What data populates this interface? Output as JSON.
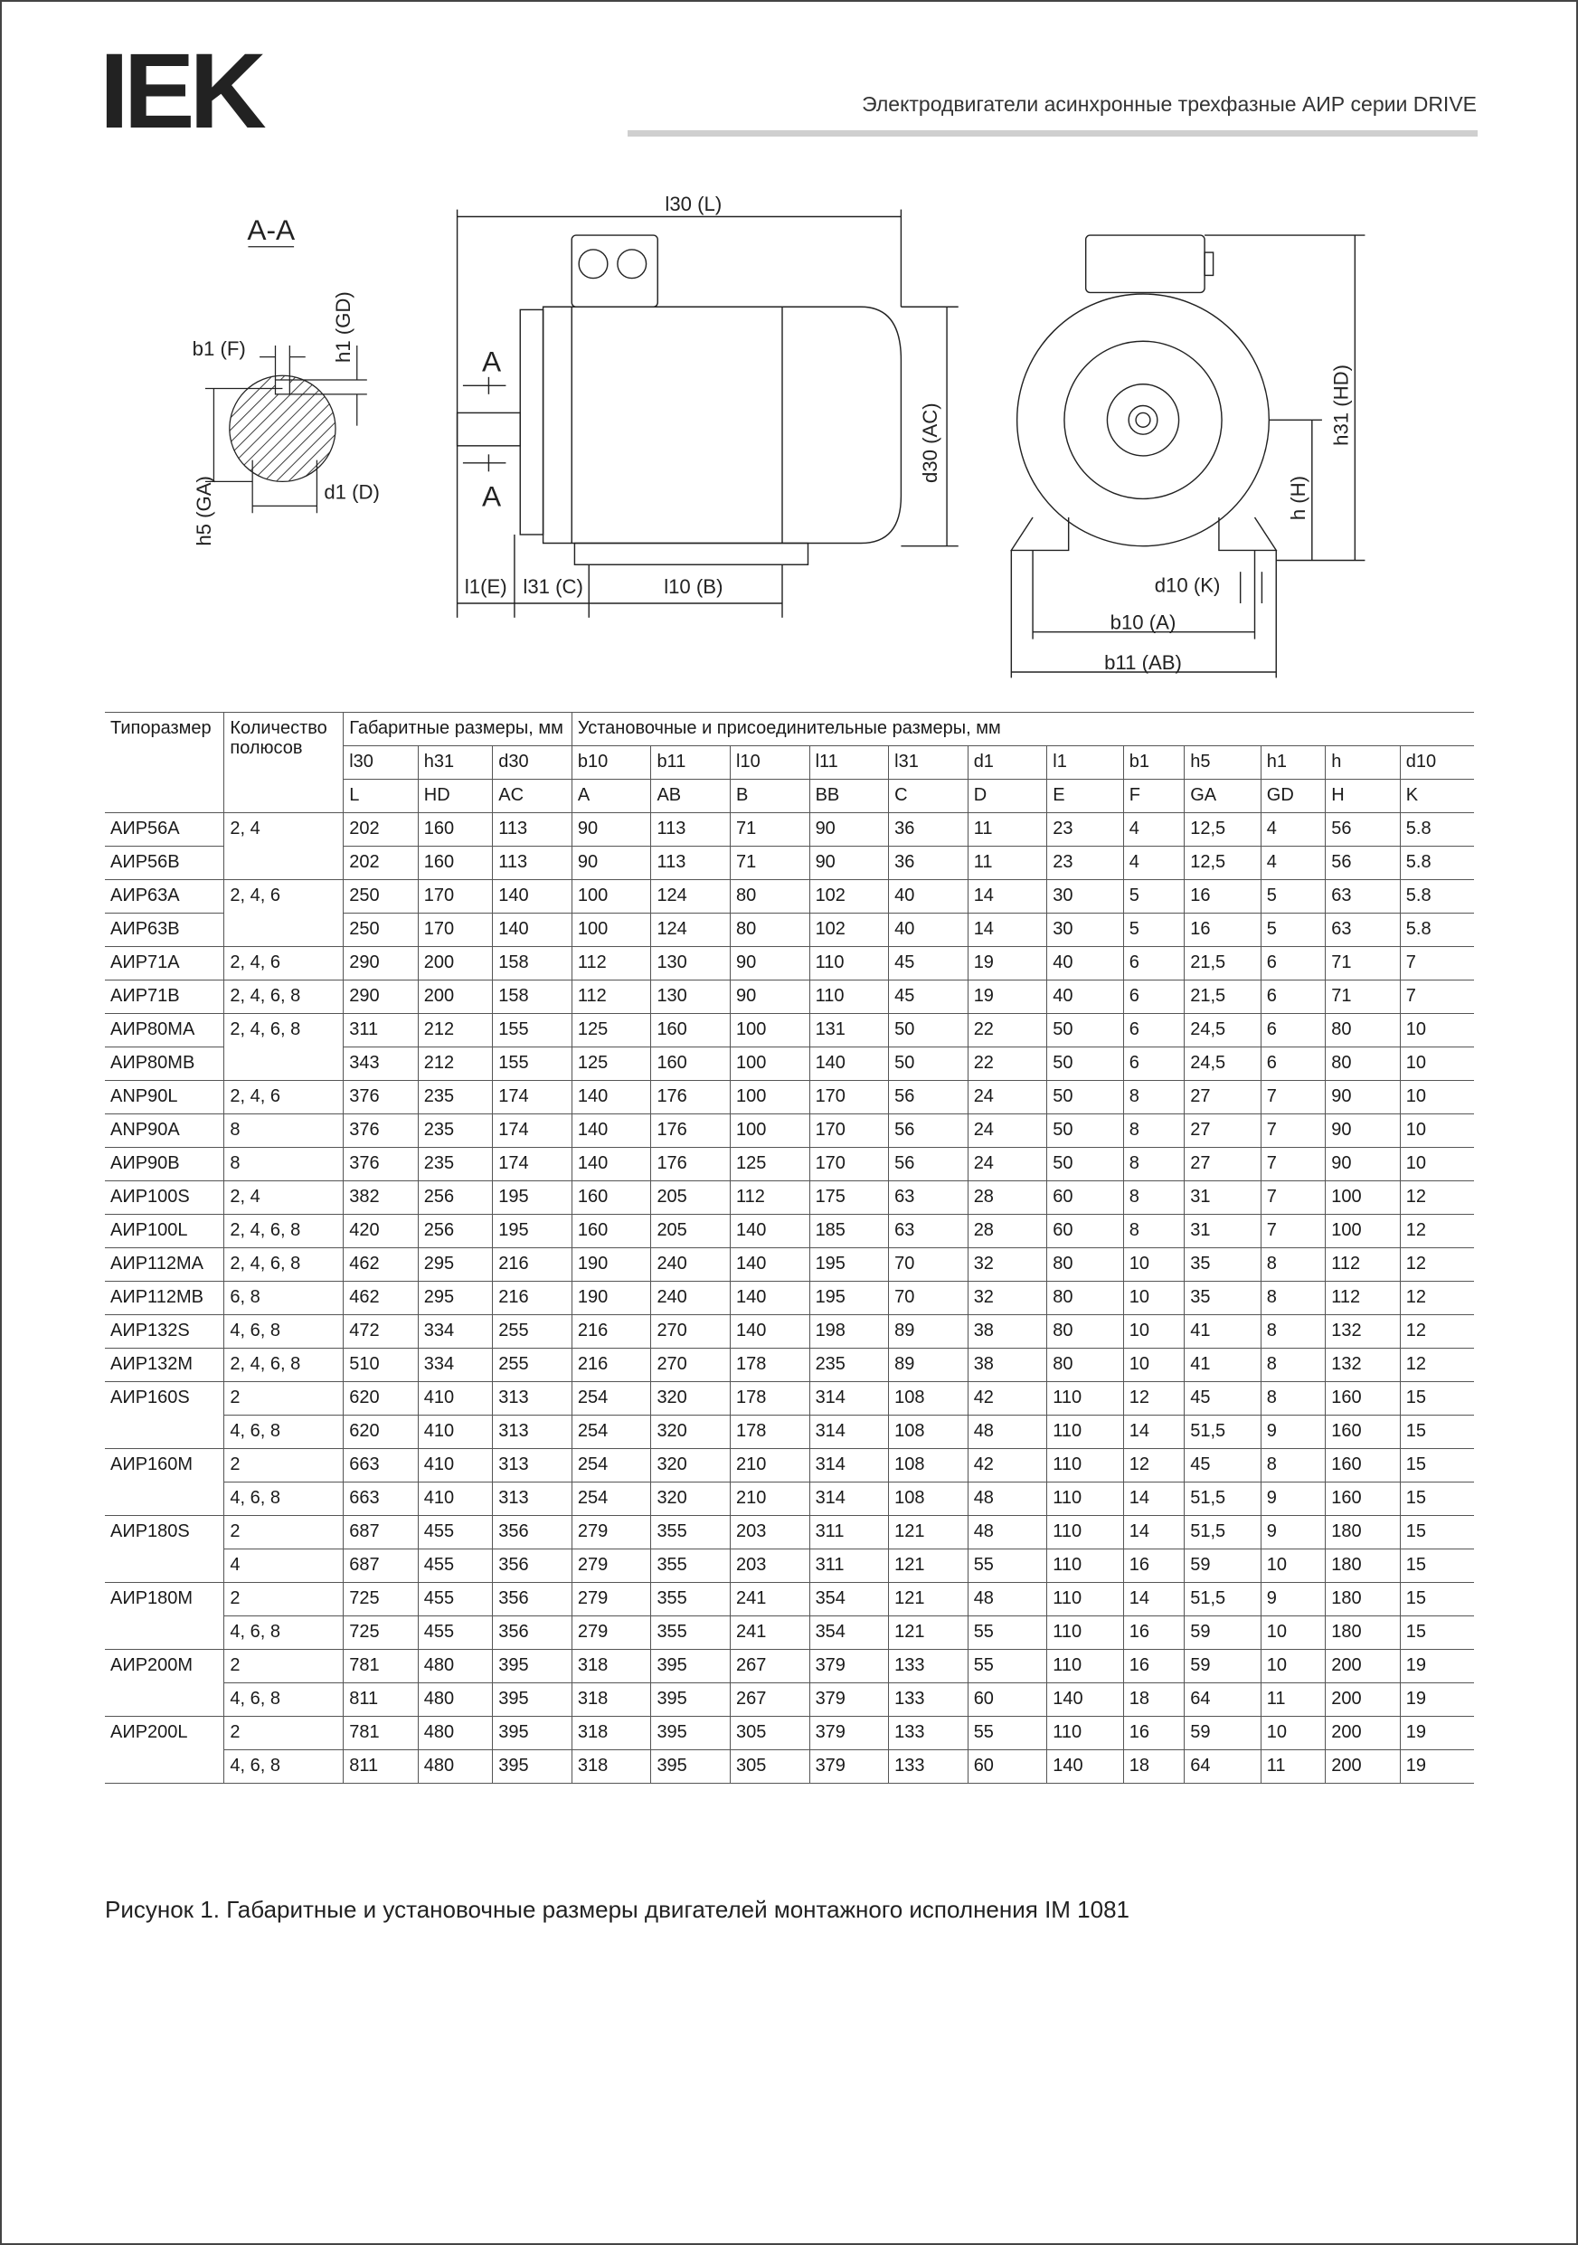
{
  "header": {
    "logo": "IEK",
    "title": "Электродвигатели асинхронные трехфазные АИР серии DRIVE"
  },
  "drawing": {
    "labels": {
      "section": "A-A",
      "b1": "b1 (F)",
      "h1": "h1 (GD)",
      "h5": "h5 (GA)",
      "d1": "d1 (D)",
      "l30": "l30 (L)",
      "cutTop": "A",
      "cutBottom": "A",
      "d30": "d30 (AC)",
      "l1": "l1(E)",
      "l31": "l31 (C)",
      "l10": "l10 (B)",
      "h31": "h31 (HD)",
      "h": "h (H)",
      "d10": "d10 (K)",
      "b10": "b10 (A)",
      "b11": "b11 (AB)"
    }
  },
  "table": {
    "header": {
      "size": "Типоразмер",
      "poles": "Количество полюсов",
      "overall": "Габаритные размеры, мм",
      "mounting": "Установочные и присоединительные размеры, мм",
      "symbols": [
        "l30",
        "h31",
        "d30",
        "b10",
        "b11",
        "l10",
        "l11",
        "l31",
        "d1",
        "l1",
        "b1",
        "h5",
        "h1",
        "h",
        "d10"
      ],
      "letters": [
        "L",
        "HD",
        "AC",
        "A",
        "AB",
        "B",
        "BB",
        "C",
        "D",
        "E",
        "F",
        "GA",
        "GD",
        "H",
        "K"
      ]
    },
    "rows": [
      {
        "size": "АИР56А",
        "poles": "2, 4",
        "values": [
          202,
          160,
          113,
          90,
          113,
          71,
          90,
          36,
          11,
          23,
          4,
          "12,5",
          4,
          56,
          5.8
        ]
      },
      {
        "size": "АИР56В",
        "values": [
          202,
          160,
          113,
          90,
          113,
          71,
          90,
          36,
          11,
          23,
          4,
          "12,5",
          4,
          56,
          5.8
        ]
      },
      {
        "size": "АИР63А",
        "poles": "2, 4, 6",
        "values": [
          250,
          170,
          140,
          100,
          124,
          80,
          102,
          40,
          14,
          30,
          5,
          16,
          5,
          63,
          5.8
        ]
      },
      {
        "size": "АИР63В",
        "values": [
          250,
          170,
          140,
          100,
          124,
          80,
          102,
          40,
          14,
          30,
          5,
          16,
          5,
          63,
          5.8
        ]
      },
      {
        "size": "АИР71А",
        "poles": "2, 4, 6",
        "values": [
          290,
          200,
          158,
          112,
          130,
          90,
          110,
          45,
          19,
          40,
          6,
          "21,5",
          6,
          71,
          7
        ]
      },
      {
        "size": "АИР71В",
        "poles": "2, 4, 6, 8",
        "values": [
          290,
          200,
          158,
          112,
          130,
          90,
          110,
          45,
          19,
          40,
          6,
          "21,5",
          6,
          71,
          7
        ]
      },
      {
        "size": "АИР80МА",
        "poles": "2, 4, 6, 8",
        "values": [
          311,
          212,
          155,
          125,
          160,
          100,
          131,
          50,
          22,
          50,
          6,
          "24,5",
          6,
          80,
          10
        ]
      },
      {
        "size": "АИР80МВ",
        "values": [
          343,
          212,
          155,
          125,
          160,
          100,
          140,
          50,
          22,
          50,
          6,
          "24,5",
          6,
          80,
          10
        ]
      },
      {
        "size": "ANP90L",
        "poles": "2, 4, 6",
        "values": [
          376,
          235,
          174,
          140,
          176,
          100,
          170,
          56,
          24,
          50,
          8,
          27,
          7,
          90,
          10
        ]
      },
      {
        "size": "ANP90A",
        "poles": "8",
        "values": [
          376,
          235,
          174,
          140,
          176,
          100,
          170,
          56,
          24,
          50,
          8,
          27,
          7,
          90,
          10
        ]
      },
      {
        "size": "АИР90В",
        "poles": "8",
        "values": [
          376,
          235,
          174,
          140,
          176,
          125,
          170,
          56,
          24,
          50,
          8,
          27,
          7,
          90,
          10
        ]
      },
      {
        "size": "АИР100S",
        "poles": "2, 4",
        "values": [
          382,
          256,
          195,
          160,
          205,
          112,
          175,
          63,
          28,
          60,
          8,
          31,
          7,
          100,
          12
        ]
      },
      {
        "size": "АИР100L",
        "poles": "2, 4, 6, 8",
        "values": [
          420,
          256,
          195,
          160,
          205,
          140,
          185,
          63,
          28,
          60,
          8,
          31,
          7,
          100,
          12
        ]
      },
      {
        "size": "АИР112МА",
        "poles": "2, 4, 6, 8",
        "values": [
          462,
          295,
          216,
          190,
          240,
          140,
          195,
          70,
          32,
          80,
          10,
          35,
          8,
          112,
          12
        ]
      },
      {
        "size": "АИР112МВ",
        "poles": "6, 8",
        "values": [
          462,
          295,
          216,
          190,
          240,
          140,
          195,
          70,
          32,
          80,
          10,
          35,
          8,
          112,
          12
        ]
      },
      {
        "size": "АИР132S",
        "poles": "4, 6, 8",
        "values": [
          472,
          334,
          255,
          216,
          270,
          140,
          198,
          89,
          38,
          80,
          10,
          41,
          8,
          132,
          12
        ]
      },
      {
        "size": "АИР132М",
        "poles": "2, 4, 6, 8",
        "values": [
          510,
          334,
          255,
          216,
          270,
          178,
          235,
          89,
          38,
          80,
          10,
          41,
          8,
          132,
          12
        ]
      },
      {
        "size": "АИР160S",
        "poles": "2",
        "values": [
          620,
          410,
          313,
          254,
          320,
          178,
          314,
          108,
          42,
          110,
          12,
          45,
          8,
          160,
          15
        ]
      },
      {
        "poles": "4, 6, 8",
        "values": [
          620,
          410,
          313,
          254,
          320,
          178,
          314,
          108,
          48,
          110,
          14,
          "51,5",
          9,
          160,
          15
        ]
      },
      {
        "size": "АИР160М",
        "poles": "2",
        "values": [
          663,
          410,
          313,
          254,
          320,
          210,
          314,
          108,
          42,
          110,
          12,
          45,
          8,
          160,
          15
        ]
      },
      {
        "poles": "4, 6, 8",
        "values": [
          663,
          410,
          313,
          254,
          320,
          210,
          314,
          108,
          48,
          110,
          14,
          "51,5",
          9,
          160,
          15
        ]
      },
      {
        "size": "АИР180S",
        "poles": "2",
        "values": [
          687,
          455,
          356,
          279,
          355,
          203,
          311,
          121,
          48,
          110,
          14,
          "51,5",
          9,
          180,
          15
        ]
      },
      {
        "poles": "4",
        "values": [
          687,
          455,
          356,
          279,
          355,
          203,
          311,
          121,
          55,
          110,
          16,
          59,
          10,
          180,
          15
        ]
      },
      {
        "size": "АИР180М",
        "poles": "2",
        "values": [
          725,
          455,
          356,
          279,
          355,
          241,
          354,
          121,
          48,
          110,
          14,
          "51,5",
          9,
          180,
          15
        ]
      },
      {
        "poles": "4, 6, 8",
        "values": [
          725,
          455,
          356,
          279,
          355,
          241,
          354,
          121,
          55,
          110,
          16,
          59,
          10,
          180,
          15
        ]
      },
      {
        "size": "АИР200М",
        "poles": "2",
        "values": [
          781,
          480,
          395,
          318,
          395,
          267,
          379,
          133,
          55,
          110,
          16,
          59,
          10,
          200,
          19
        ]
      },
      {
        "poles": "4, 6, 8",
        "values": [
          811,
          480,
          395,
          318,
          395,
          267,
          379,
          133,
          60,
          140,
          18,
          64,
          11,
          200,
          19
        ]
      },
      {
        "size": "АИР200L",
        "poles": "2",
        "values": [
          781,
          480,
          395,
          318,
          395,
          305,
          379,
          133,
          55,
          110,
          16,
          59,
          10,
          200,
          19
        ]
      },
      {
        "poles": "4, 6, 8",
        "values": [
          811,
          480,
          395,
          318,
          395,
          305,
          379,
          133,
          60,
          140,
          18,
          64,
          11,
          200,
          19
        ]
      }
    ]
  },
  "caption": "Рисунок 1. Габаритные и установочные размеры двигателей монтажного исполнения IM 1081"
}
